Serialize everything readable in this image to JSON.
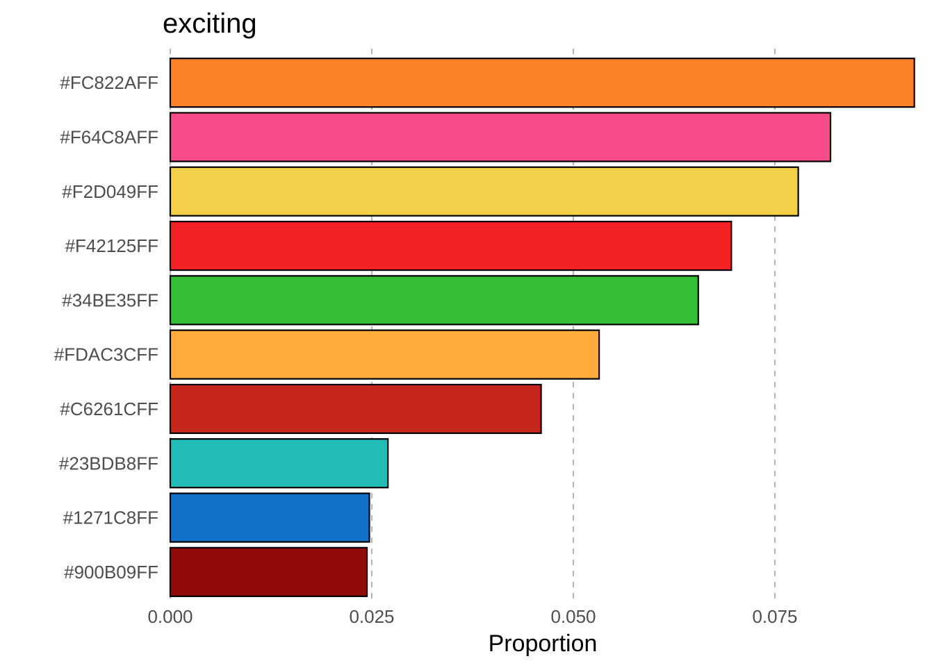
{
  "chart_data": {
    "type": "bar",
    "orientation": "horizontal",
    "title": "exciting",
    "xlabel": "Proportion",
    "ylabel": "",
    "xlim": [
      0,
      0.0925
    ],
    "xticks": [
      0.0,
      0.025,
      0.05,
      0.075
    ],
    "xtick_labels": [
      "0.000",
      "0.025",
      "0.050",
      "0.075"
    ],
    "grid": "vertical dashed major gridlines",
    "legend": "none",
    "categories": [
      "#FC822AFF",
      "#F64C8AFF",
      "#F2D049FF",
      "#F42125FF",
      "#34BE35FF",
      "#FDAC3CFF",
      "#C6261CFF",
      "#23BDB8FF",
      "#1271C8FF",
      "#900B09FF"
    ],
    "values": [
      0.0923,
      0.0819,
      0.0779,
      0.0696,
      0.0655,
      0.0532,
      0.046,
      0.027,
      0.0247,
      0.0244
    ],
    "bar_colors": [
      "#FC822A",
      "#F64C8A",
      "#F2D049",
      "#F42125",
      "#34BE35",
      "#FDAC3C",
      "#C6261C",
      "#23BDB8",
      "#1271C8",
      "#900B09"
    ]
  }
}
